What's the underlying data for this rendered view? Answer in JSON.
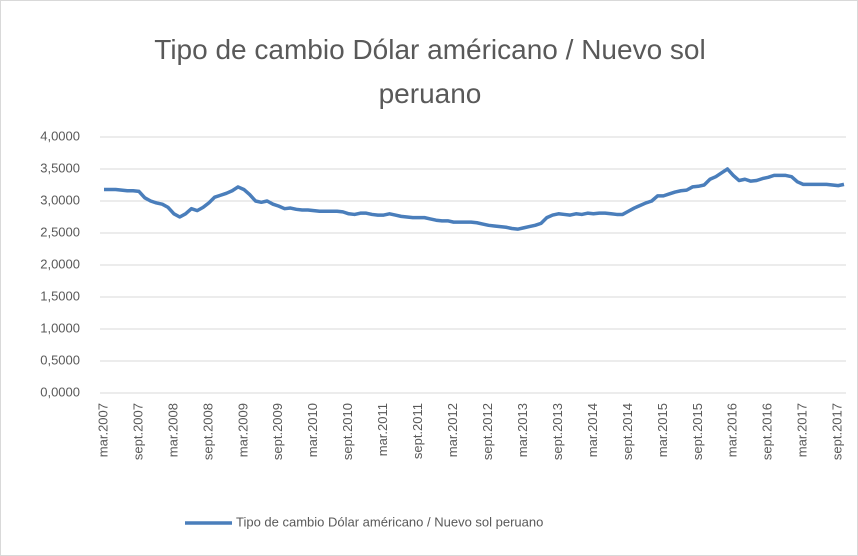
{
  "chart_data": {
    "type": "line",
    "title": "Tipo de cambio Dólar américano / Nuevo sol peruano",
    "categories": [
      "mar.2007",
      null,
      null,
      null,
      null,
      null,
      "sept.2007",
      null,
      null,
      null,
      null,
      null,
      "mar.2008",
      null,
      null,
      null,
      null,
      null,
      "sept.2008",
      null,
      null,
      null,
      null,
      null,
      "mar.2009",
      null,
      null,
      null,
      null,
      null,
      "sept.2009",
      null,
      null,
      null,
      null,
      null,
      "mar.2010",
      null,
      null,
      null,
      null,
      null,
      "sept.2010",
      null,
      null,
      null,
      null,
      null,
      "mar.2011",
      null,
      null,
      null,
      null,
      null,
      "sept.2011",
      null,
      null,
      null,
      null,
      null,
      "mar.2012",
      null,
      null,
      null,
      null,
      null,
      "sept.2012",
      null,
      null,
      null,
      null,
      null,
      "mar.2013",
      null,
      null,
      null,
      null,
      null,
      "sept.2013",
      null,
      null,
      null,
      null,
      null,
      "mar.2014",
      null,
      null,
      null,
      null,
      null,
      "sept.2014",
      null,
      null,
      null,
      null,
      null,
      "mar.2015",
      null,
      null,
      null,
      null,
      null,
      "sept.2015",
      null,
      null,
      null,
      null,
      null,
      "mar.2016",
      null,
      null,
      null,
      null,
      null,
      "sept.2016",
      null,
      null,
      null,
      null,
      null,
      "mar.2017",
      null,
      null,
      null,
      null,
      null,
      "sept.2017",
      null
    ],
    "series": [
      {
        "name": "Tipo de cambio Dólar américano / Nuevo sol peruano",
        "color": "#4a7ebb",
        "values": [
          3.18,
          3.18,
          3.18,
          3.17,
          3.16,
          3.16,
          3.15,
          3.05,
          3.0,
          2.97,
          2.95,
          2.9,
          2.8,
          2.75,
          2.8,
          2.88,
          2.85,
          2.9,
          2.97,
          3.06,
          3.09,
          3.12,
          3.16,
          3.22,
          3.18,
          3.1,
          3.0,
          2.98,
          3.0,
          2.95,
          2.92,
          2.88,
          2.89,
          2.87,
          2.86,
          2.86,
          2.85,
          2.84,
          2.84,
          2.84,
          2.84,
          2.83,
          2.8,
          2.79,
          2.81,
          2.81,
          2.79,
          2.78,
          2.78,
          2.8,
          2.78,
          2.76,
          2.75,
          2.74,
          2.74,
          2.74,
          2.72,
          2.7,
          2.69,
          2.69,
          2.67,
          2.67,
          2.67,
          2.67,
          2.66,
          2.64,
          2.62,
          2.61,
          2.6,
          2.59,
          2.57,
          2.56,
          2.58,
          2.6,
          2.62,
          2.65,
          2.74,
          2.78,
          2.8,
          2.79,
          2.78,
          2.8,
          2.79,
          2.81,
          2.8,
          2.81,
          2.81,
          2.8,
          2.79,
          2.79,
          2.84,
          2.89,
          2.93,
          2.97,
          3.0,
          3.08,
          3.08,
          3.11,
          3.14,
          3.16,
          3.17,
          3.22,
          3.23,
          3.25,
          3.34,
          3.38,
          3.44,
          3.5,
          3.4,
          3.32,
          3.34,
          3.31,
          3.32,
          3.35,
          3.37,
          3.4,
          3.4,
          3.4,
          3.38,
          3.3,
          3.26,
          3.26,
          3.26,
          3.26,
          3.26,
          3.25,
          3.24,
          3.26
        ]
      }
    ],
    "ylim": [
      0,
      4
    ],
    "yticks": [
      {
        "value": 0,
        "label": "0,0000"
      },
      {
        "value": 0.5,
        "label": "0,5000"
      },
      {
        "value": 1,
        "label": "1,0000"
      },
      {
        "value": 1.5,
        "label": "1,5000"
      },
      {
        "value": 2,
        "label": "2,0000"
      },
      {
        "value": 2.5,
        "label": "2,5000"
      },
      {
        "value": 3,
        "label": "3,0000"
      },
      {
        "value": 3.5,
        "label": "3,5000"
      },
      {
        "value": 4,
        "label": "4,0000"
      }
    ],
    "grid": true,
    "legend": "bottom"
  }
}
